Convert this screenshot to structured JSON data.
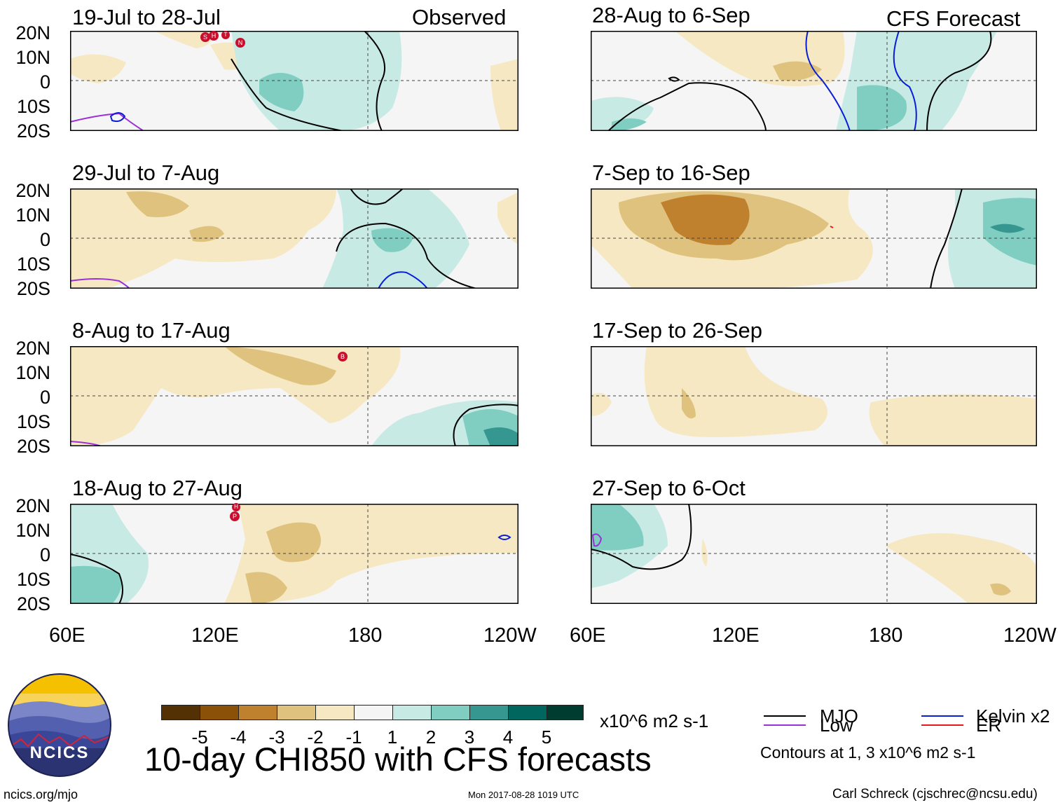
{
  "header": {
    "observed_label": "Observed",
    "forecast_label": "CFS Forecast"
  },
  "axes": {
    "lat_labels": [
      "20N",
      "10N",
      "0",
      "10S",
      "20S"
    ],
    "lon_labels": [
      "60E",
      "120E",
      "180",
      "120W"
    ]
  },
  "panels": {
    "left": [
      {
        "title": "19-Jul to 28-Jul",
        "storms": [
          "S",
          "H",
          "T",
          "N"
        ]
      },
      {
        "title": "29-Jul to 7-Aug"
      },
      {
        "title": "8-Aug to 17-Aug",
        "storms": [
          "B"
        ]
      },
      {
        "title": "18-Aug to 27-Aug",
        "storms": [
          "H",
          "P"
        ]
      }
    ],
    "right": [
      {
        "title": "28-Aug to 6-Sep"
      },
      {
        "title": "7-Sep to 16-Sep"
      },
      {
        "title": "17-Sep to 26-Sep"
      },
      {
        "title": "27-Sep to 6-Oct"
      }
    ]
  },
  "colorbar": {
    "ticks": [
      "-5",
      "-4",
      "-3",
      "-2",
      "-1",
      "1",
      "2",
      "3",
      "4",
      "5"
    ],
    "colors": [
      "#543005",
      "#8c5109",
      "#bf812d",
      "#dfc27d",
      "#f6e8c3",
      "#f5f5f5",
      "#c7eae5",
      "#80cdc1",
      "#35978f",
      "#01665e",
      "#003c30"
    ],
    "units": "x10^6 m2 s-1"
  },
  "legend": {
    "mjo": "MJO",
    "low": "Low",
    "kelvin": "Kelvin x2",
    "er": "ER",
    "contours_note": "Contours at 1, 3 x10^6 m2 s-1",
    "colors": {
      "mjo": "#000000",
      "low": "#9b30d9",
      "kelvin": "#0a1ed8",
      "er": "#e8191c"
    }
  },
  "footer": {
    "main_title": "10-day CHI850 with CFS forecasts",
    "website": "ncics.org/mjo",
    "timestamp": "Mon 2017-08-28 1019 UTC",
    "credit": "Carl Schreck (cjschrec@ncsu.edu)",
    "logo_text": "NCICS"
  }
}
